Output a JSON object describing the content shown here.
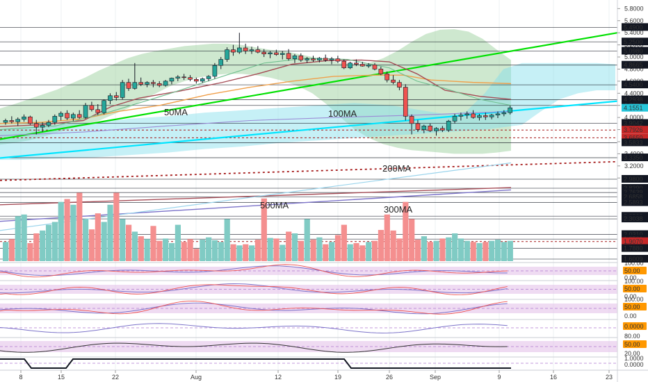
{
  "chart_data": {
    "type": "candlestick",
    "price_ylim": [
      2.98,
      5.85
    ],
    "grid": true,
    "price_ticks": [
      "5.8000",
      "5.6000",
      "5.4000",
      "5.2000",
      "5.0000",
      "4.8000",
      "4.6000",
      "4.4000",
      "4.2000",
      "4.0000",
      "3.8000",
      "3.6000",
      "3.4000",
      "3.2000",
      "3.0000"
    ],
    "level_labels": [
      {
        "value": 5.49,
        "text": "5.4900",
        "color": "#131722"
      },
      {
        "value": 5.25,
        "text": "5.2500",
        "color": "#131722"
      },
      {
        "value": 5.098,
        "text": "5.0980",
        "color": "#131722"
      },
      {
        "value": 4.8665,
        "text": "4.8665",
        "color": "#131722"
      },
      {
        "value": 4.54,
        "text": "4.5400",
        "color": "#131722"
      },
      {
        "value": 4.2938,
        "text": "4.2938",
        "color": "#131722"
      },
      {
        "value": 4.2,
        "text": "4.2000",
        "color": "#131722"
      },
      {
        "value": 4.1551,
        "text": "4.1551",
        "color": "#26c6da"
      },
      {
        "value": 3.9042,
        "text": "3.9042",
        "color": "#131722"
      },
      {
        "value": 3.7926,
        "text": "3.7926",
        "color": "#c62828"
      },
      {
        "value": 3.665,
        "text": "3.6650",
        "color": "#c62828"
      },
      {
        "value": 3.5833,
        "text": "3.5833",
        "color": "#131722"
      },
      {
        "value": 3.335,
        "text": "3.3350",
        "color": "#131722"
      },
      {
        "value": 2.98,
        "text": "2.9800",
        "color": "#131722"
      }
    ],
    "volume_ticks": [
      {
        "value": 2.839,
        "text": "2.8390",
        "color": "#131722"
      },
      {
        "value": 2.7639,
        "text": "2.7639",
        "color": "#131722"
      },
      {
        "value": 2.6858,
        "text": "2.6858",
        "color": "#131722"
      },
      {
        "value": 2.5893,
        "text": "2.5893",
        "color": "#131722"
      },
      {
        "value": 2.35,
        "text": "2.3500",
        "color": "#131722"
      },
      {
        "value": 2.3038,
        "text": "2.3038",
        "color": "#131722"
      },
      {
        "value": 2.031,
        "text": "2.0310",
        "color": "#131722"
      },
      {
        "value": 1.9501,
        "text": "1.9501",
        "color": "#131722"
      },
      {
        "value": 1.907,
        "text": "1.9070",
        "color": "#c62828"
      },
      {
        "value": 1.788,
        "text": "1.7880",
        "color": "#131722"
      },
      {
        "value": 1.6009,
        "text": "1.6009",
        "color": "#131722"
      }
    ],
    "x_ticks": [
      "8",
      "15",
      "22",
      "Aug",
      "12",
      "19",
      "26",
      "Sep",
      "9",
      "16",
      "23"
    ],
    "ma_labels": [
      "50MA",
      "100MA",
      "200MA",
      "500MA",
      "300MA"
    ],
    "candles": [
      [
        3.92,
        3.98,
        3.88,
        3.95
      ],
      [
        3.95,
        4.02,
        3.9,
        3.93
      ],
      [
        3.93,
        4.0,
        3.86,
        3.97
      ],
      [
        3.97,
        4.05,
        3.93,
        4.01
      ],
      [
        4.01,
        4.03,
        3.88,
        3.9
      ],
      [
        3.9,
        3.96,
        3.72,
        3.84
      ],
      [
        3.84,
        3.92,
        3.76,
        3.87
      ],
      [
        3.87,
        3.96,
        3.84,
        3.92
      ],
      [
        3.92,
        4.05,
        3.88,
        4.02
      ],
      [
        4.02,
        4.1,
        3.95,
        4.07
      ],
      [
        4.07,
        4.12,
        3.96,
        3.99
      ],
      [
        3.99,
        4.08,
        3.94,
        4.05
      ],
      [
        4.05,
        4.12,
        3.98,
        4.0
      ],
      [
        4.0,
        4.24,
        3.98,
        4.2
      ],
      [
        4.2,
        4.26,
        4.1,
        4.13
      ],
      [
        4.13,
        4.22,
        4.04,
        4.08
      ],
      [
        4.08,
        4.3,
        4.05,
        4.28
      ],
      [
        4.28,
        4.4,
        4.22,
        4.36
      ],
      [
        4.36,
        4.42,
        4.28,
        4.33
      ],
      [
        4.33,
        4.62,
        4.3,
        4.58
      ],
      [
        4.58,
        4.64,
        4.44,
        4.48
      ],
      [
        4.48,
        4.9,
        4.46,
        4.58
      ],
      [
        4.58,
        4.66,
        4.52,
        4.55
      ],
      [
        4.55,
        4.6,
        4.5,
        4.58
      ],
      [
        4.58,
        4.62,
        4.5,
        4.56
      ],
      [
        4.56,
        4.6,
        4.5,
        4.53
      ],
      [
        4.53,
        4.62,
        4.51,
        4.6
      ],
      [
        4.6,
        4.66,
        4.55,
        4.65
      ],
      [
        4.65,
        4.7,
        4.6,
        4.67
      ],
      [
        4.67,
        4.72,
        4.62,
        4.66
      ],
      [
        4.66,
        4.7,
        4.6,
        4.63
      ],
      [
        4.63,
        4.66,
        4.56,
        4.6
      ],
      [
        4.6,
        4.66,
        4.57,
        4.64
      ],
      [
        4.64,
        4.7,
        4.6,
        4.68
      ],
      [
        4.68,
        4.9,
        4.64,
        4.86
      ],
      [
        4.86,
        5.0,
        4.8,
        4.96
      ],
      [
        4.96,
        5.16,
        4.92,
        5.12
      ],
      [
        5.12,
        5.2,
        5.02,
        5.08
      ],
      [
        5.08,
        5.4,
        5.05,
        5.15
      ],
      [
        5.15,
        5.22,
        5.05,
        5.1
      ],
      [
        5.1,
        5.17,
        5.05,
        5.12
      ],
      [
        5.12,
        5.18,
        5.06,
        5.08
      ],
      [
        5.08,
        5.13,
        5.0,
        5.05
      ],
      [
        5.05,
        5.1,
        4.98,
        5.07
      ],
      [
        5.07,
        5.12,
        5.02,
        5.04
      ],
      [
        5.04,
        5.1,
        4.96,
        5.06
      ],
      [
        5.06,
        5.13,
        4.94,
        4.97
      ],
      [
        4.97,
        5.05,
        4.9,
        5.02
      ],
      [
        5.02,
        5.06,
        4.92,
        4.95
      ],
      [
        4.95,
        5.0,
        4.9,
        4.97
      ],
      [
        4.97,
        5.02,
        4.92,
        4.95
      ],
      [
        4.95,
        5.0,
        4.91,
        4.98
      ],
      [
        4.98,
        5.04,
        4.92,
        4.95
      ],
      [
        4.95,
        5.0,
        4.88,
        4.97
      ],
      [
        4.97,
        5.02,
        4.9,
        4.93
      ],
      [
        4.93,
        4.96,
        4.8,
        4.82
      ],
      [
        4.82,
        4.92,
        4.8,
        4.9
      ],
      [
        4.9,
        4.96,
        4.85,
        4.88
      ],
      [
        4.88,
        4.92,
        4.84,
        4.85
      ],
      [
        4.85,
        4.9,
        4.82,
        4.87
      ],
      [
        4.87,
        4.9,
        4.78,
        4.8
      ],
      [
        4.8,
        4.84,
        4.7,
        4.72
      ],
      [
        4.72,
        4.76,
        4.58,
        4.62
      ],
      [
        4.62,
        4.7,
        4.55,
        4.58
      ],
      [
        4.58,
        4.62,
        4.45,
        4.5
      ],
      [
        4.5,
        4.55,
        3.95,
        4.02
      ],
      [
        4.02,
        4.05,
        3.72,
        3.9
      ],
      [
        3.9,
        3.96,
        3.76,
        3.8
      ],
      [
        3.8,
        3.88,
        3.74,
        3.86
      ],
      [
        3.86,
        3.9,
        3.76,
        3.78
      ],
      [
        3.78,
        3.84,
        3.7,
        3.82
      ],
      [
        3.82,
        3.86,
        3.76,
        3.79
      ],
      [
        3.79,
        3.96,
        3.76,
        3.94
      ],
      [
        3.94,
        4.06,
        3.9,
        4.02
      ],
      [
        4.02,
        4.08,
        3.95,
        4.04
      ],
      [
        4.04,
        4.1,
        3.98,
        4.06
      ],
      [
        4.06,
        4.12,
        3.98,
        4.0
      ],
      [
        4.0,
        4.06,
        3.95,
        4.03
      ],
      [
        4.03,
        4.08,
        3.96,
        4.01
      ],
      [
        4.01,
        4.06,
        3.97,
        4.04
      ],
      [
        4.04,
        4.1,
        3.99,
        4.06
      ],
      [
        4.06,
        4.12,
        4.02,
        4.08
      ],
      [
        4.08,
        4.2,
        4.05,
        4.16
      ]
    ],
    "volume_bar_max": 2.84,
    "volumes": [
      1.9,
      1.95,
      2.35,
      2.38,
      1.88,
      2.05,
      2.1,
      2.2,
      2.25,
      2.6,
      2.65,
      2.55,
      2.76,
      2.3,
      2.12,
      2.4,
      2.25,
      2.55,
      2.76,
      2.3,
      2.2,
      2.08,
      2.0,
      1.95,
      2.18,
      1.92,
      1.96,
      1.88,
      2.2,
      1.9,
      1.95,
      1.78,
      1.94,
      1.98,
      1.93,
      1.9,
      2.3,
      1.86,
      1.84,
      1.86,
      1.84,
      1.94,
      2.66,
      1.97,
      1.96,
      1.85,
      2.08,
      2.05,
      1.92,
      2.3,
      1.94,
      1.98,
      1.86,
      1.9,
      2.02,
      2.2,
      1.86,
      1.88,
      1.84,
      1.9,
      1.92,
      2.11,
      2.38,
      2.1,
      1.96,
      2.6,
      2.3,
      1.94,
      2.0,
      1.9,
      1.92,
      1.96,
      1.98,
      2.05,
      1.96,
      1.92,
      1.9,
      1.88,
      1.9,
      1.92,
      1.94,
      1.9,
      1.92
    ],
    "indicator_panels": [
      {
        "ticks": [
          "100.00",
          "50.00",
          "0.00"
        ],
        "highlight": "50.00"
      },
      {
        "ticks": [
          "100.00",
          "50.00",
          "0.00"
        ],
        "highlight": "50.00"
      },
      {
        "ticks": [
          "100.00",
          "50.00",
          "0.00"
        ],
        "highlight": "50.00"
      },
      {
        "ticks": [
          "0.0000"
        ],
        "highlight": "0.0000"
      },
      {
        "ticks": [
          "80.00",
          "50.00",
          "20.00"
        ],
        "highlight": "50.00"
      },
      {
        "ticks": [
          "1.0000",
          "0.0000"
        ],
        "highlight": ""
      }
    ],
    "colors": {
      "up": "#26a69a",
      "down": "#ef5350",
      "up_vol": "#80cbc4",
      "down_vol": "#f48f8f",
      "wick": "#131722",
      "accent_green": "#00e000",
      "accent_cyan": "#00e5ff",
      "dotted_red": "#a51919",
      "band_green": "#a5d6a7",
      "band_cyan": "#80deea",
      "stoch_bg": "#e1bee7",
      "highlight": "#ff9800"
    }
  }
}
